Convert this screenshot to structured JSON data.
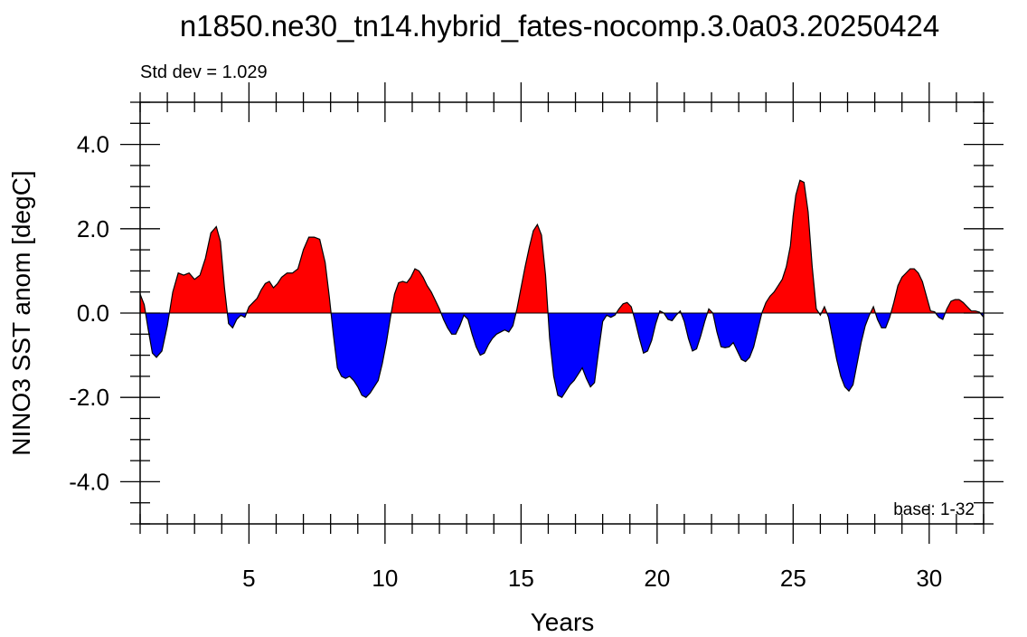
{
  "chart_data": {
    "type": "area",
    "title": "n1850.ne30_tn14.hybrid_fates-nocomp.3.0a03.20250424",
    "subtitle_left": "Std dev = 1.029",
    "annotation": "base: 1-32",
    "xlabel": "Years",
    "ylabel": "NINO3 SST anom [degC]",
    "xlim": [
      1,
      32
    ],
    "ylim": [
      -5,
      5
    ],
    "xticks": [
      5,
      10,
      15,
      20,
      25,
      30
    ],
    "yticks": [
      4,
      2,
      0,
      -2,
      -4
    ],
    "ytick_labels": [
      "4.0",
      "2.0",
      "0.0",
      "-2.0",
      "-4.0"
    ],
    "positive_color": "#ff0000",
    "negative_color": "#0000ff",
    "x": [
      1.0,
      1.15,
      1.3,
      1.45,
      1.6,
      1.8,
      2.0,
      2.2,
      2.4,
      2.6,
      2.8,
      3.0,
      3.2,
      3.4,
      3.6,
      3.8,
      3.95,
      4.1,
      4.25,
      4.4,
      4.55,
      4.7,
      4.85,
      5.0,
      5.15,
      5.3,
      5.45,
      5.6,
      5.75,
      5.9,
      6.05,
      6.2,
      6.4,
      6.6,
      6.8,
      7.0,
      7.2,
      7.4,
      7.6,
      7.8,
      7.95,
      8.1,
      8.25,
      8.4,
      8.55,
      8.7,
      8.85,
      9.0,
      9.15,
      9.3,
      9.45,
      9.6,
      9.75,
      9.9,
      10.05,
      10.2,
      10.35,
      10.5,
      10.65,
      10.8,
      10.95,
      11.1,
      11.25,
      11.4,
      11.55,
      11.7,
      11.85,
      12.0,
      12.15,
      12.3,
      12.45,
      12.6,
      12.75,
      12.9,
      13.05,
      13.2,
      13.35,
      13.5,
      13.65,
      13.8,
      13.95,
      14.1,
      14.25,
      14.4,
      14.55,
      14.7,
      14.85,
      15.0,
      15.15,
      15.3,
      15.45,
      15.6,
      15.75,
      15.9,
      16.05,
      16.2,
      16.35,
      16.5,
      16.65,
      16.8,
      16.95,
      17.1,
      17.25,
      17.4,
      17.55,
      17.7,
      17.85,
      18.0,
      18.15,
      18.3,
      18.45,
      18.6,
      18.75,
      18.9,
      19.05,
      19.2,
      19.35,
      19.5,
      19.65,
      19.8,
      19.95,
      20.1,
      20.25,
      20.4,
      20.55,
      20.7,
      20.85,
      21.0,
      21.15,
      21.3,
      21.45,
      21.6,
      21.75,
      21.9,
      22.05,
      22.2,
      22.35,
      22.5,
      22.65,
      22.8,
      22.95,
      23.1,
      23.25,
      23.4,
      23.55,
      23.7,
      23.85,
      24.0,
      24.15,
      24.3,
      24.45,
      24.6,
      24.75,
      24.9,
      25.0,
      25.1,
      25.25,
      25.4,
      25.55,
      25.7,
      25.85,
      26.0,
      26.15,
      26.3,
      26.45,
      26.6,
      26.75,
      26.9,
      27.05,
      27.2,
      27.35,
      27.5,
      27.65,
      27.8,
      27.95,
      28.1,
      28.25,
      28.4,
      28.55,
      28.7,
      28.85,
      29.0,
      29.15,
      29.3,
      29.45,
      29.6,
      29.75,
      29.9,
      30.05,
      30.2,
      30.35,
      30.5,
      30.65,
      30.8,
      30.95,
      31.1,
      31.25,
      31.4,
      31.55,
      31.7,
      31.85,
      32.0
    ],
    "values": [
      0.45,
      0.2,
      -0.4,
      -0.95,
      -1.05,
      -0.9,
      -0.3,
      0.5,
      0.95,
      0.9,
      0.95,
      0.8,
      0.9,
      1.3,
      1.9,
      2.05,
      1.7,
      0.6,
      -0.25,
      -0.35,
      -0.15,
      -0.05,
      -0.1,
      0.15,
      0.25,
      0.35,
      0.55,
      0.7,
      0.75,
      0.6,
      0.7,
      0.85,
      0.95,
      0.95,
      1.05,
      1.5,
      1.8,
      1.8,
      1.75,
      1.2,
      0.4,
      -0.5,
      -1.3,
      -1.5,
      -1.55,
      -1.5,
      -1.6,
      -1.75,
      -1.95,
      -2.0,
      -1.9,
      -1.75,
      -1.6,
      -1.2,
      -0.7,
      -0.1,
      0.45,
      0.72,
      0.75,
      0.72,
      0.85,
      1.05,
      1.0,
      0.85,
      0.65,
      0.5,
      0.3,
      0.1,
      -0.15,
      -0.35,
      -0.5,
      -0.5,
      -0.3,
      -0.05,
      -0.15,
      -0.5,
      -0.8,
      -1.0,
      -0.95,
      -0.75,
      -0.6,
      -0.5,
      -0.45,
      -0.4,
      -0.45,
      -0.3,
      0.1,
      0.6,
      1.1,
      1.55,
      1.95,
      2.1,
      1.85,
      0.9,
      -0.6,
      -1.5,
      -1.95,
      -2.0,
      -1.85,
      -1.7,
      -1.6,
      -1.45,
      -1.3,
      -1.55,
      -1.75,
      -1.65,
      -0.9,
      -0.2,
      -0.05,
      -0.1,
      -0.05,
      0.1,
      0.22,
      0.25,
      0.15,
      -0.2,
      -0.6,
      -0.95,
      -0.9,
      -0.65,
      -0.25,
      0.05,
      0.0,
      -0.15,
      -0.18,
      -0.05,
      0.05,
      -0.2,
      -0.6,
      -0.9,
      -0.85,
      -0.55,
      -0.2,
      0.1,
      0.0,
      -0.45,
      -0.8,
      -0.82,
      -0.8,
      -0.7,
      -0.9,
      -1.1,
      -1.15,
      -1.05,
      -0.8,
      -0.4,
      0.0,
      0.25,
      0.4,
      0.5,
      0.65,
      0.8,
      1.1,
      1.6,
      2.3,
      2.8,
      3.15,
      3.1,
      2.4,
      1.1,
      0.1,
      -0.05,
      0.15,
      -0.1,
      -0.6,
      -1.1,
      -1.5,
      -1.75,
      -1.85,
      -1.7,
      -1.2,
      -0.7,
      -0.3,
      -0.05,
      0.15,
      -0.15,
      -0.35,
      -0.35,
      -0.1,
      0.25,
      0.65,
      0.85,
      0.95,
      1.05,
      1.05,
      0.95,
      0.75,
      0.4,
      0.05,
      0.03,
      -0.1,
      -0.15,
      0.1,
      0.28,
      0.32,
      0.32,
      0.25,
      0.15,
      0.05,
      0.05,
      0.02,
      -0.1
    ]
  }
}
